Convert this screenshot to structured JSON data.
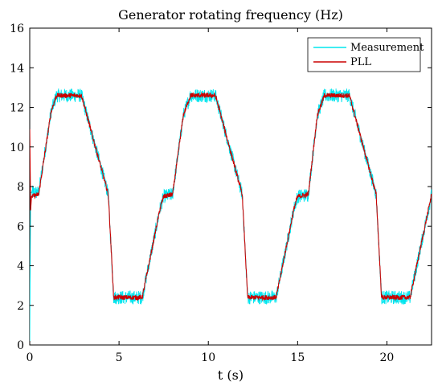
{
  "chart_data": {
    "type": "line",
    "title": "Generator rotating frequency (Hz)",
    "xlabel": "t (s)",
    "ylabel": "",
    "xlim": [
      0,
      22.5
    ],
    "ylim": [
      0,
      16
    ],
    "xticks": [
      0,
      5,
      10,
      15,
      20
    ],
    "yticks": [
      0,
      2,
      4,
      6,
      8,
      10,
      12,
      14,
      16
    ],
    "grid": false,
    "legend_position": "top-right",
    "series": [
      {
        "name": "Measurement",
        "color": "#00e5ee",
        "noise_amplitude": 0.35,
        "x": [
          0,
          0.05,
          0.1,
          0.5,
          1.2,
          1.5,
          2.9,
          4.4,
          4.7,
          6.3,
          7.3,
          7.5,
          8.0,
          8.6,
          9.0,
          10.4,
          11.9,
          12.2,
          13.8,
          14.8,
          15.0,
          15.6,
          16.1,
          16.5,
          17.9,
          19.4,
          19.7,
          21.3,
          22.5
        ],
        "values": [
          0,
          7.7,
          7.7,
          7.7,
          11.8,
          12.6,
          12.6,
          7.6,
          2.4,
          2.4,
          6.9,
          7.5,
          7.6,
          11.6,
          12.6,
          12.6,
          7.6,
          2.4,
          2.4,
          6.9,
          7.5,
          7.6,
          11.6,
          12.6,
          12.6,
          7.6,
          2.4,
          2.4,
          7.6
        ]
      },
      {
        "name": "PLL",
        "color": "#cc0000",
        "noise_amplitude": 0.12,
        "x": [
          0,
          0.05,
          0.1,
          0.5,
          1.2,
          1.5,
          2.9,
          4.4,
          4.7,
          6.3,
          7.3,
          7.5,
          8.0,
          8.6,
          9.0,
          10.4,
          11.9,
          12.2,
          13.8,
          14.8,
          15.0,
          15.6,
          16.1,
          16.5,
          17.9,
          19.4,
          19.7,
          21.3,
          22.5
        ],
        "values": [
          10.9,
          6.8,
          7.5,
          7.6,
          11.8,
          12.6,
          12.6,
          7.6,
          2.4,
          2.4,
          6.9,
          7.5,
          7.6,
          11.6,
          12.6,
          12.6,
          7.6,
          2.4,
          2.4,
          6.9,
          7.5,
          7.6,
          11.6,
          12.6,
          12.6,
          7.6,
          2.4,
          2.4,
          7.6
        ]
      }
    ]
  }
}
